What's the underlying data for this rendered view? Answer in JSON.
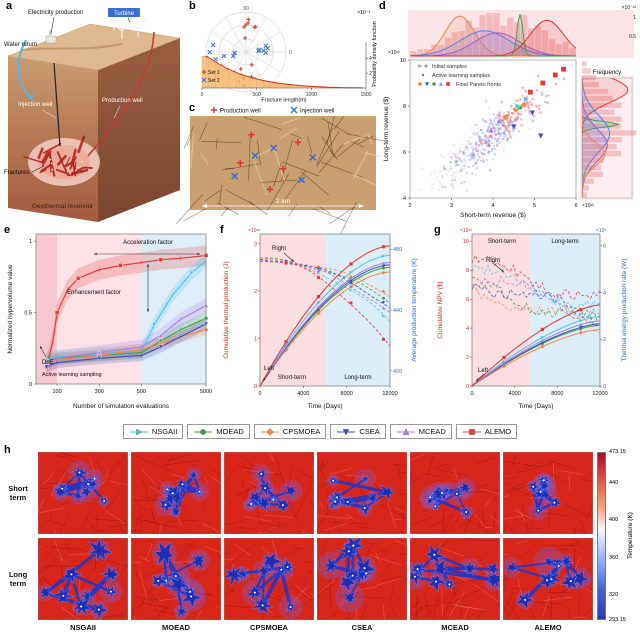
{
  "letters": {
    "a": "a",
    "b": "b",
    "c": "c",
    "d": "d",
    "e": "e",
    "f": "f",
    "g": "g",
    "h": "h"
  },
  "panel_a": {
    "electricity": "Electricity production",
    "turbine": "Turbine",
    "water_return": "Water return",
    "injection": "Injection well",
    "production": "Production well",
    "fractures": "Fractures",
    "reservoir": "Geothermal reservoir"
  },
  "panel_c": {
    "legend": [
      {
        "label": "Production well",
        "color": "#d83a30",
        "marker": "plus"
      },
      {
        "label": "Injection well",
        "color": "#3b6fd4",
        "marker": "cross"
      }
    ],
    "scale_label": "2 km",
    "map_bg": "#c9a06f",
    "production_wells": [
      [
        0.33,
        0.2
      ],
      [
        0.58,
        0.28
      ],
      [
        0.27,
        0.5
      ],
      [
        0.5,
        0.56
      ],
      [
        0.43,
        0.78
      ]
    ],
    "injection_wells": [
      [
        0.45,
        0.34
      ],
      [
        0.66,
        0.44
      ],
      [
        0.35,
        0.42
      ],
      [
        0.6,
        0.68
      ],
      [
        0.24,
        0.64
      ]
    ]
  },
  "algorithms": [
    {
      "name": "NSGAII",
      "color": "#4fc3e8",
      "marker": "triangle-right"
    },
    {
      "name": "MOEAD",
      "color": "#43a047",
      "marker": "circle"
    },
    {
      "name": "CPSMOEA",
      "color": "#f4874b",
      "marker": "diamond"
    },
    {
      "name": "CSEA",
      "color": "#3f51b5",
      "marker": "triangle-down"
    },
    {
      "name": "MCEAD",
      "color": "#ab7ce4",
      "marker": "triangle-up"
    },
    {
      "name": "ALEMO",
      "color": "#e53935",
      "marker": "square"
    }
  ],
  "panel_h": {
    "row_labels": [
      "Short term",
      "Long term"
    ],
    "colorbar_title": "Temperature (K)",
    "colorbar_ticks": [
      473.15,
      440,
      400,
      360,
      320,
      293.15
    ],
    "hot_color": "#d8251a",
    "cold_color": "#1b2fb4",
    "halo_color": "rgba(130,90,210,0.32)"
  },
  "chart_data": [
    {
      "id": "b",
      "type": "polar-histogram",
      "angle_top": "90",
      "angle_right": "0",
      "sets": [
        {
          "name": "Set 1",
          "color": "#d83a30",
          "marker": "plus",
          "mean_angle": 90,
          "spread": 50,
          "n": 14
        },
        {
          "name": "Set 2",
          "color": "#3b6fd4",
          "marker": "cross",
          "mean_angle": 5,
          "spread": 36,
          "n": 12
        }
      ],
      "hist": {
        "xlabel": "Fracture length(m)",
        "xticks": [
          0,
          500,
          1000,
          1500
        ],
        "ylabel": "Probability density function",
        "y_mult": "×10⁻³",
        "yticks": [
          2,
          4
        ],
        "bars": [
          4.3,
          3.8,
          3.2,
          2.7,
          2.3,
          1.9,
          1.6,
          1.35,
          1.1,
          0.92,
          0.75,
          0.6,
          0.5,
          0.4,
          0.32,
          0.25,
          0.2,
          0.15,
          0.11,
          0.08,
          0.06,
          0.04,
          0.03,
          0.02
        ]
      }
    },
    {
      "id": "d",
      "type": "scatter",
      "xlabel": "Short-term revenue ($)",
      "ylabel": "Long-term revenue ($)",
      "x_mult": "×10¹²",
      "y_mult": "×10¹²",
      "density_mult": "×10⁻¹²",
      "density_ticks": [
        "1",
        "0.5"
      ],
      "xlim": [
        2,
        6
      ],
      "ylim": [
        4,
        10
      ],
      "xticks": [
        2,
        3,
        4,
        5,
        6
      ],
      "yticks": [
        4,
        6,
        8,
        10
      ],
      "frequency_label": "Frequency",
      "legend": [
        "Initial samples",
        "Active learning samples",
        "Final Pareto fronts"
      ],
      "clusters": [
        {
          "color": "#b8b8b8",
          "alpha": 0.3,
          "n": 150,
          "cx": 3.6,
          "cy": 6.1,
          "sx": 0.55,
          "sy": 0.95,
          "corr": 0.85,
          "size": 2.2
        },
        {
          "color": "#4f86e8",
          "alpha": 0.35,
          "n": 120,
          "cx": 4.0,
          "cy": 6.8,
          "sx": 0.5,
          "sy": 0.85,
          "corr": 0.85,
          "size": 2.4
        },
        {
          "color": "#9a5fd0",
          "alpha": 0.35,
          "n": 100,
          "cx": 3.7,
          "cy": 6.3,
          "sx": 0.45,
          "sy": 0.8,
          "corr": 0.85,
          "size": 2.4
        },
        {
          "color": "#e85048",
          "alpha": 0.4,
          "n": 90,
          "cx": 4.6,
          "cy": 7.8,
          "sx": 0.45,
          "sy": 0.75,
          "corr": 0.8,
          "size": 2.6
        }
      ],
      "pareto": [
        {
          "alg": 5,
          "pts": [
            [
              5.2,
              9.0
            ],
            [
              5.5,
              9.35
            ],
            [
              5.7,
              9.6
            ],
            [
              4.9,
              8.6
            ]
          ]
        },
        {
          "alg": 2,
          "pts": [
            [
              4.3,
              7.5
            ],
            [
              4.55,
              7.85
            ],
            [
              4.75,
              8.05
            ]
          ]
        },
        {
          "alg": 3,
          "pts": [
            [
              4.5,
              7.1
            ],
            [
              4.95,
              7.7
            ],
            [
              5.15,
              6.7
            ]
          ]
        },
        {
          "alg": 4,
          "pts": [
            [
              4.15,
              7.35
            ],
            [
              3.95,
              6.95
            ]
          ]
        },
        {
          "alg": 1,
          "pts": [
            [
              4.65,
              7.95
            ]
          ]
        },
        {
          "alg": 0,
          "pts": [
            [
              4.8,
              8.3
            ],
            [
              4.6,
              8.0
            ]
          ]
        }
      ],
      "top_density": [
        {
          "color": "#f4874b",
          "mean": 3.2,
          "sd": 0.35,
          "h": 0.95
        },
        {
          "color": "#4f86e8",
          "mean": 3.8,
          "sd": 0.6,
          "h": 0.6
        },
        {
          "color": "#9a5fd0",
          "mean": 4.1,
          "sd": 0.55,
          "h": 0.55
        },
        {
          "color": "#43a047",
          "mean": 4.65,
          "sd": 0.07,
          "h": 1.0
        },
        {
          "color": "#e53935",
          "mean": 5.3,
          "sd": 0.4,
          "h": 0.85
        }
      ],
      "right_density": [
        {
          "color": "#e53935",
          "mean": 8.7,
          "sd": 0.55,
          "h": 1.0
        },
        {
          "color": "#43a047",
          "mean": 7.2,
          "sd": 0.12,
          "h": 0.8
        },
        {
          "color": "#9a5fd0",
          "mean": 6.3,
          "sd": 0.7,
          "h": 0.55
        },
        {
          "color": "#4f86e8",
          "mean": 6.8,
          "sd": 0.8,
          "h": 0.6
        },
        {
          "color": "#f4874b",
          "mean": 5.9,
          "sd": 0.5,
          "h": 0.5
        }
      ],
      "top_hist": {
        "mean": 4.2,
        "sd": 1.0,
        "color": "rgba(235,120,130,0.4)",
        "bins": 24
      },
      "right_hist": {
        "mean": 7.0,
        "sd": 1.4,
        "color": "rgba(235,120,130,0.4)",
        "bins": 20
      }
    },
    {
      "id": "e",
      "type": "line",
      "xlabel": "Number of simulation evaluations",
      "ylabel": "Normalized hypervolume value",
      "xticks": [
        100,
        300,
        500,
        5000
      ],
      "yticks": [
        0,
        0.5,
        1
      ],
      "ylim": [
        0,
        1.05
      ],
      "annotations": {
        "accel": "Acceleration factor",
        "enh": "Enhancement factor",
        "doe": "DoE",
        "als": "Active learning sampling"
      },
      "series": [
        {
          "name": "ALEMO",
          "color": "#e53935",
          "marker": "square",
          "band": 0.07,
          "x": [
            50,
            80,
            100,
            150,
            200,
            300,
            400,
            500,
            1000,
            2000,
            5000
          ],
          "y": [
            0.12,
            0.3,
            0.5,
            0.66,
            0.74,
            0.8,
            0.83,
            0.85,
            0.87,
            0.88,
            0.9
          ]
        },
        {
          "name": "NSGAII",
          "color": "#4fc3e8",
          "marker": "triangle-right",
          "band": 0.05,
          "x": [
            50,
            100,
            300,
            500,
            800,
            1500,
            3000,
            5000
          ],
          "y": [
            0.17,
            0.19,
            0.21,
            0.23,
            0.42,
            0.62,
            0.78,
            0.86
          ]
        },
        {
          "name": "MOEAD",
          "color": "#43a047",
          "marker": "circle",
          "band": 0.04,
          "x": [
            50,
            100,
            300,
            500,
            1000,
            2000,
            5000
          ],
          "y": [
            0.16,
            0.18,
            0.2,
            0.22,
            0.3,
            0.38,
            0.46
          ]
        },
        {
          "name": "CPSMOEA",
          "color": "#f4874b",
          "marker": "diamond",
          "band": 0.04,
          "x": [
            50,
            100,
            300,
            500,
            1000,
            2000,
            5000
          ],
          "y": [
            0.14,
            0.17,
            0.2,
            0.24,
            0.28,
            0.33,
            0.38
          ]
        },
        {
          "name": "CSEA",
          "color": "#3f51b5",
          "marker": "triangle-down",
          "band": 0.04,
          "x": [
            50,
            100,
            300,
            500,
            1000,
            2000,
            5000
          ],
          "y": [
            0.12,
            0.15,
            0.18,
            0.2,
            0.26,
            0.33,
            0.42
          ]
        },
        {
          "name": "MCEAD",
          "color": "#ab7ce4",
          "marker": "triangle-up",
          "band": 0.05,
          "x": [
            50,
            100,
            300,
            500,
            1000,
            2000,
            5000
          ],
          "y": [
            0.15,
            0.18,
            0.22,
            0.26,
            0.34,
            0.45,
            0.55
          ]
        }
      ]
    },
    {
      "id": "f",
      "type": "line",
      "xlabel": "Time (Days)",
      "xticks": [
        0,
        4000,
        8000,
        12000
      ],
      "xmax": 12000,
      "left_label": "Cumulative thermal production (J)",
      "left_mult": "×10¹⁶",
      "left_ticks": [
        0,
        1,
        2,
        3
      ],
      "left_lim": [
        0,
        3.2
      ],
      "left_color": "#d03025",
      "right_label": "Average production temperature (K)",
      "right_ticks": [
        400,
        440,
        480
      ],
      "right_lim": [
        390,
        490
      ],
      "right_color": "#2a6fd0",
      "short_end": 6000,
      "temp_start": 473.15,
      "annotations": {
        "right": "Right",
        "left": "Left",
        "short": "Short-term",
        "long": "Long-term"
      },
      "cumulative_final": [
        2.75,
        2.5,
        2.4,
        2.55,
        2.6,
        2.95
      ],
      "temp_final": [
        432,
        445,
        450,
        442,
        438,
        415
      ]
    },
    {
      "id": "g",
      "type": "line",
      "xlabel": "Time (Days)",
      "xticks": [
        0,
        4000,
        8000,
        12000
      ],
      "xmax": 12000,
      "left_label": "Cumulative NPV ($)",
      "left_mult": "×10¹²",
      "left_ticks": [
        0,
        2,
        4,
        6,
        8,
        10
      ],
      "left_lim": [
        0,
        10.5
      ],
      "left_color": "#d03025",
      "right_label": "Thermal energy production rate (W)",
      "right_mult": "×10⁷",
      "right_ticks": [
        0,
        2,
        4,
        6
      ],
      "right_lim": [
        0,
        6.5
      ],
      "right_color": "#2a6fd0",
      "short_end": 5500,
      "annotations": {
        "right": "Right",
        "left": "Left",
        "short": "Short-term",
        "long": "Long-term"
      },
      "npv_final": [
        4.8,
        4.2,
        3.9,
        4.3,
        4.5,
        5.6
      ],
      "rate_start": [
        5.0,
        4.3,
        4.0,
        4.5,
        4.7,
        5.3
      ],
      "rate_final": [
        3.3,
        2.7,
        2.5,
        2.9,
        3.1,
        3.7
      ]
    },
    {
      "id": "h",
      "type": "heatmap",
      "rows": [
        "Short term",
        "Long term"
      ],
      "cols": [
        "NSGAII",
        "MOEAD",
        "CPSMOEA",
        "CSEA",
        "MCEAD",
        "ALEMO"
      ],
      "temperature_range": [
        293.15,
        473.15
      ]
    }
  ]
}
